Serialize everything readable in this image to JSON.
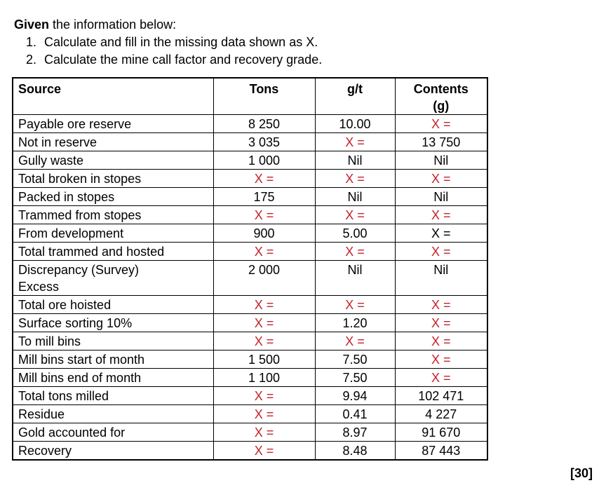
{
  "intro": {
    "bold": "Given",
    "rest": " the information below:"
  },
  "instructions": [
    {
      "num": "1.",
      "text": "Calculate and fill in the missing data shown as X."
    },
    {
      "num": "2.",
      "text": "Calculate the mine call factor and recovery grade."
    }
  ],
  "marks": "[30]",
  "colors": {
    "missing_red": "#c3232a",
    "text": "#000000",
    "border": "#000000"
  },
  "table": {
    "headers": [
      {
        "label": "Source"
      },
      {
        "label": "Tons"
      },
      {
        "label": "g/t"
      },
      {
        "label": "Contents\n(g)"
      }
    ],
    "rows": [
      {
        "source_lines": [
          "Payable ore reserve"
        ],
        "cells": [
          {
            "text": "8 250"
          },
          {
            "text": "10.00"
          },
          {
            "text": "X =",
            "red": true
          }
        ]
      },
      {
        "source_lines": [
          "Not in reserve"
        ],
        "cells": [
          {
            "text": "3 035"
          },
          {
            "text": "X =",
            "red": true
          },
          {
            "text": "13 750"
          }
        ]
      },
      {
        "source_lines": [
          "Gully waste"
        ],
        "cells": [
          {
            "text": "1 000"
          },
          {
            "text": "Nil"
          },
          {
            "text": "Nil"
          }
        ]
      },
      {
        "source_lines": [
          "Total broken in stopes"
        ],
        "cells": [
          {
            "text": "X =",
            "red": true
          },
          {
            "text": "X =",
            "red": true
          },
          {
            "text": "X =",
            "red": true
          }
        ]
      },
      {
        "source_lines": [
          "Packed in stopes"
        ],
        "cells": [
          {
            "text": "175"
          },
          {
            "text": "Nil"
          },
          {
            "text": "Nil"
          }
        ]
      },
      {
        "source_lines": [
          "Trammed from stopes"
        ],
        "cells": [
          {
            "text": "X =",
            "red": true
          },
          {
            "text": "X =",
            "red": true
          },
          {
            "text": "X =",
            "red": true
          }
        ]
      },
      {
        "source_lines": [
          "From development"
        ],
        "cells": [
          {
            "text": "900"
          },
          {
            "text": "5.00"
          },
          {
            "text": "X =",
            "red": false
          }
        ]
      },
      {
        "source_lines": [
          "Total trammed and hosted"
        ],
        "cells": [
          {
            "text": "X =",
            "red": true
          },
          {
            "text": "X =",
            "red": true
          },
          {
            "text": "X =",
            "red": true
          }
        ]
      },
      {
        "source_lines": [
          "Discrepancy (Survey)",
          "Excess"
        ],
        "cells": [
          {
            "text": "2 000"
          },
          {
            "text": "Nil"
          },
          {
            "text": "Nil"
          }
        ]
      },
      {
        "source_lines": [
          "Total ore hoisted"
        ],
        "cells": [
          {
            "text": "X =",
            "red": true
          },
          {
            "text": "X =",
            "red": true
          },
          {
            "text": "X =",
            "red": true
          }
        ]
      },
      {
        "source_lines": [
          "Surface sorting 10%"
        ],
        "cells": [
          {
            "text": "X =",
            "red": true
          },
          {
            "text": "1.20"
          },
          {
            "text": "X =",
            "red": true
          }
        ]
      },
      {
        "source_lines": [
          "To mill bins"
        ],
        "cells": [
          {
            "text": "X =",
            "red": true
          },
          {
            "text": "X =",
            "red": true
          },
          {
            "text": "X =",
            "red": true
          }
        ]
      },
      {
        "source_lines": [
          "Mill bins start of month"
        ],
        "cells": [
          {
            "text": "1 500"
          },
          {
            "text": "7.50"
          },
          {
            "text": "X =",
            "red": true
          }
        ]
      },
      {
        "source_lines": [
          "Mill bins end of month"
        ],
        "cells": [
          {
            "text": "1 100"
          },
          {
            "text": "7.50"
          },
          {
            "text": "X =",
            "red": true
          }
        ]
      },
      {
        "source_lines": [
          "Total tons milled"
        ],
        "cells": [
          {
            "text": "X =",
            "red": true
          },
          {
            "text": "9.94"
          },
          {
            "text": "102 471"
          }
        ]
      },
      {
        "source_lines": [
          "Residue"
        ],
        "cells": [
          {
            "text": "X =",
            "red": true
          },
          {
            "text": "0.41"
          },
          {
            "text": "4 227"
          }
        ]
      },
      {
        "source_lines": [
          "Gold accounted for"
        ],
        "cells": [
          {
            "text": "X =",
            "red": true
          },
          {
            "text": "8.97"
          },
          {
            "text": "91 670"
          }
        ]
      },
      {
        "source_lines": [
          "Recovery"
        ],
        "cells": [
          {
            "text": "X =",
            "red": true
          },
          {
            "text": "8.48"
          },
          {
            "text": "87 443"
          }
        ]
      }
    ]
  }
}
